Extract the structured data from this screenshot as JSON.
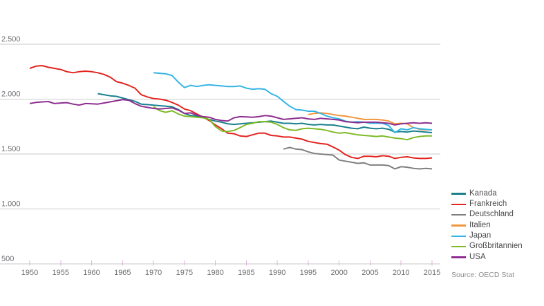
{
  "chart_data": {
    "type": "line",
    "title": "",
    "grid": true,
    "legend_position": "right",
    "x_axis": {
      "range": [
        1950,
        2015
      ],
      "ticks": [
        1950,
        1955,
        1960,
        1965,
        1970,
        1975,
        1980,
        1985,
        1990,
        1995,
        2000,
        2005,
        2010,
        2015
      ]
    },
    "y_axis": {
      "range": [
        500,
        2500
      ],
      "tick_values": [
        2500,
        2000,
        1500,
        1000,
        500
      ],
      "tick_labels": [
        "2.500",
        "2.000",
        "1.500",
        "1.000",
        "500"
      ]
    },
    "colors": {
      "gridline": "#c9c9c9",
      "x_tick": "#ddb3dc",
      "axis_text": "#6e6e73",
      "legend_text": "#4b4b4e",
      "source_text": "#8f8f93"
    },
    "series": [
      {
        "name": "Kanada",
        "color": "#18808d",
        "start_year": 1961,
        "values": [
          2050,
          2040,
          2030,
          2025,
          2010,
          1995,
          1980,
          1955,
          1950,
          1945,
          1940,
          1935,
          1930,
          1905,
          1870,
          1850,
          1845,
          1835,
          1815,
          1800,
          1790,
          1775,
          1770,
          1775,
          1780,
          1785,
          1790,
          1795,
          1800,
          1790,
          1780,
          1780,
          1775,
          1780,
          1770,
          1765,
          1770,
          1765,
          1765,
          1755,
          1745,
          1735,
          1730,
          1745,
          1735,
          1730,
          1735,
          1725,
          1700,
          1705,
          1700,
          1710,
          1705,
          1700,
          1695
        ]
      },
      {
        "name": "Frankreich",
        "color": "#e3231e",
        "start_year": 1950,
        "values": [
          2280,
          2300,
          2305,
          2290,
          2280,
          2270,
          2250,
          2240,
          2250,
          2255,
          2250,
          2240,
          2225,
          2200,
          2160,
          2145,
          2125,
          2100,
          2040,
          2020,
          2005,
          2000,
          1990,
          1970,
          1945,
          1910,
          1895,
          1865,
          1835,
          1805,
          1765,
          1730,
          1690,
          1685,
          1665,
          1660,
          1675,
          1690,
          1690,
          1670,
          1665,
          1655,
          1655,
          1645,
          1635,
          1615,
          1605,
          1595,
          1590,
          1565,
          1535,
          1495,
          1470,
          1460,
          1480,
          1480,
          1475,
          1485,
          1480,
          1460,
          1470,
          1475,
          1465,
          1460,
          1460,
          1465
        ]
      },
      {
        "name": "Deutschland",
        "color": "#7f7f7f",
        "start_year": 1991,
        "values": [
          1545,
          1560,
          1545,
          1540,
          1520,
          1505,
          1500,
          1495,
          1490,
          1445,
          1435,
          1425,
          1415,
          1420,
          1400,
          1400,
          1400,
          1395,
          1365,
          1385,
          1380,
          1370,
          1365,
          1370,
          1365
        ]
      },
      {
        "name": "Italien",
        "color": "#f2953a",
        "start_year": 1995,
        "values": [
          1860,
          1870,
          1875,
          1870,
          1860,
          1850,
          1845,
          1835,
          1825,
          1815,
          1815,
          1815,
          1810,
          1800,
          1775,
          1780,
          1775,
          1740,
          1725,
          1720,
          1720
        ]
      },
      {
        "name": "Japan",
        "color": "#35b5e5",
        "start_year": 1970,
        "values": [
          2240,
          2235,
          2230,
          2215,
          2155,
          2105,
          2125,
          2115,
          2125,
          2130,
          2125,
          2120,
          2115,
          2115,
          2120,
          2100,
          2090,
          2095,
          2090,
          2050,
          2025,
          1980,
          1935,
          1905,
          1900,
          1890,
          1890,
          1870,
          1845,
          1830,
          1820,
          1800,
          1790,
          1795,
          1790,
          1780,
          1780,
          1780,
          1760,
          1695,
          1730,
          1720,
          1740,
          1730,
          1725,
          1720
        ]
      },
      {
        "name": "Großbritannien",
        "color": "#7eba28",
        "start_year": 1970,
        "values": [
          1930,
          1895,
          1880,
          1895,
          1865,
          1845,
          1840,
          1835,
          1830,
          1815,
          1750,
          1710,
          1705,
          1715,
          1740,
          1770,
          1780,
          1795,
          1795,
          1790,
          1770,
          1740,
          1720,
          1715,
          1730,
          1735,
          1730,
          1725,
          1715,
          1700,
          1690,
          1695,
          1685,
          1675,
          1670,
          1665,
          1660,
          1665,
          1655,
          1645,
          1640,
          1630,
          1650,
          1660,
          1665,
          1665
        ]
      },
      {
        "name": "USA",
        "color": "#8e2d90",
        "start_year": 1950,
        "values": [
          1960,
          1970,
          1975,
          1978,
          1960,
          1965,
          1968,
          1955,
          1945,
          1960,
          1958,
          1955,
          1965,
          1975,
          1985,
          1995,
          1990,
          1960,
          1935,
          1925,
          1915,
          1910,
          1915,
          1920,
          1900,
          1870,
          1875,
          1855,
          1840,
          1835,
          1815,
          1805,
          1800,
          1830,
          1840,
          1838,
          1835,
          1840,
          1850,
          1845,
          1830,
          1815,
          1820,
          1825,
          1830,
          1820,
          1815,
          1825,
          1820,
          1815,
          1810,
          1795,
          1790,
          1785,
          1790,
          1790,
          1790,
          1785,
          1780,
          1765,
          1775,
          1780,
          1785,
          1780,
          1785,
          1780
        ]
      }
    ]
  },
  "source": {
    "text": "Source: OECD Stat"
  }
}
